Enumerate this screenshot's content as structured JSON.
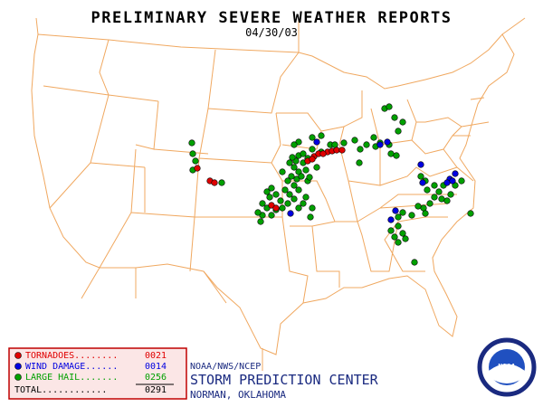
{
  "header": {
    "title": "PRELIMINARY SEVERE WEATHER REPORTS",
    "date": "04/30/03"
  },
  "legend": {
    "entries": [
      {
        "label": "TORNADOES........",
        "count": "0021",
        "color": "#e00000"
      },
      {
        "label": "WIND DAMAGE......",
        "count": "0014",
        "color": "#0000e0"
      },
      {
        "label": "LARGE HAIL.......",
        "count": "0256",
        "color": "#00a000"
      }
    ],
    "total_label": "TOTAL............",
    "total": "0291"
  },
  "footer": {
    "agency": "NOAA/NWS/NCEP",
    "center": "STORM PREDICTION CENTER",
    "location": "NORMAN, OKLAHOMA",
    "logo": "NOAA"
  }
}
